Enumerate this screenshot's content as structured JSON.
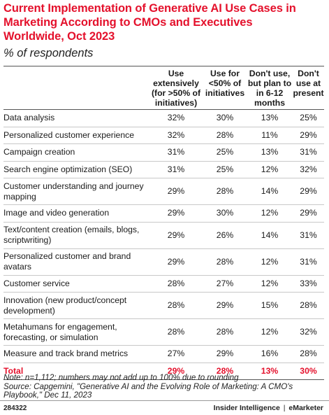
{
  "chart_data": {
    "type": "table",
    "title": "Current Implementation of Generative AI Use Cases in Marketing According to CMOs and Executives Worldwide, Oct 2023",
    "subtitle": "% of respondents",
    "columns": [
      "Use extensively (for >50% of initiatives)",
      "Use for <50% of initiatives",
      "Don't use, but plan to in 6-12 months",
      "Don't use at present"
    ],
    "rows": [
      {
        "label": "Data analysis",
        "values": [
          "32%",
          "30%",
          "13%",
          "25%"
        ]
      },
      {
        "label": "Personalized customer experience",
        "values": [
          "32%",
          "28%",
          "11%",
          "29%"
        ]
      },
      {
        "label": "Campaign creation",
        "values": [
          "31%",
          "25%",
          "13%",
          "31%"
        ]
      },
      {
        "label": "Search engine optimization (SEO)",
        "values": [
          "31%",
          "25%",
          "12%",
          "32%"
        ]
      },
      {
        "label": "Customer understanding and journey mapping",
        "values": [
          "29%",
          "28%",
          "14%",
          "29%"
        ]
      },
      {
        "label": "Image and video generation",
        "values": [
          "29%",
          "30%",
          "12%",
          "29%"
        ]
      },
      {
        "label": "Text/content creation (emails, blogs, scriptwriting)",
        "values": [
          "29%",
          "26%",
          "14%",
          "31%"
        ]
      },
      {
        "label": "Personalized customer and brand avatars",
        "values": [
          "29%",
          "28%",
          "12%",
          "31%"
        ]
      },
      {
        "label": "Customer service",
        "values": [
          "28%",
          "27%",
          "12%",
          "33%"
        ]
      },
      {
        "label": "Innovation (new product/concept development)",
        "values": [
          "28%",
          "29%",
          "15%",
          "28%"
        ]
      },
      {
        "label": "Metahumans for engagement, forecasting, or simulation",
        "values": [
          "28%",
          "28%",
          "12%",
          "32%"
        ]
      },
      {
        "label": "Measure and track brand metrics",
        "values": [
          "27%",
          "29%",
          "16%",
          "28%"
        ]
      }
    ],
    "total": {
      "label": "Total",
      "values": [
        "29%",
        "28%",
        "13%",
        "30%"
      ]
    }
  },
  "note": "Note: n=1,112; numbers may not add up to 100% due to rounding",
  "source": "Source: Capgemini, \"Generative AI and the Evolving Role of Marketing: A CMO's Playbook,\" Dec 11, 2023",
  "footer": {
    "chart_id": "284322",
    "brand_left": "Insider Intelligence",
    "brand_sep": "|",
    "brand_right": "eMarketer"
  },
  "colors": {
    "accent": "#e4112c"
  }
}
